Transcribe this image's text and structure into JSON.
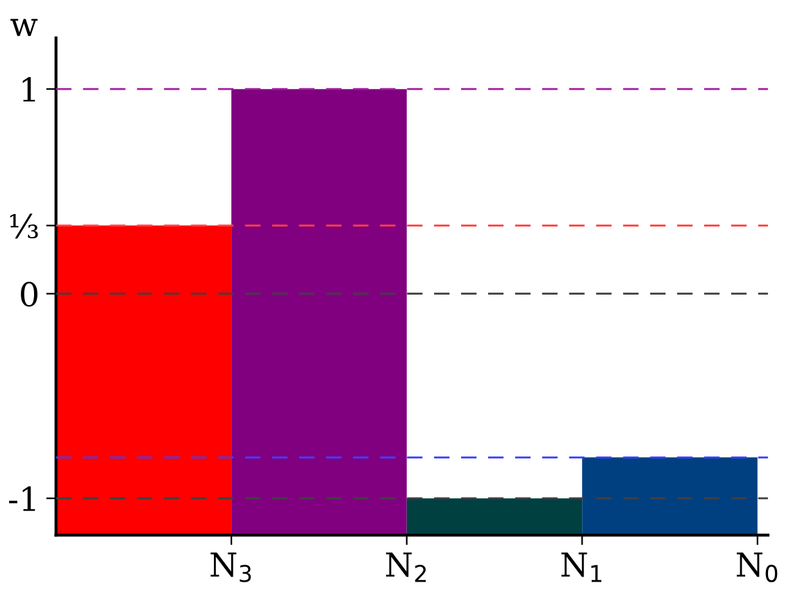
{
  "chart_data": {
    "type": "bar",
    "ylabel": "w",
    "categories": [
      "N$_{3}$",
      "N$_{2}$",
      "N$_{1}$",
      "N$_{0}$"
    ],
    "series": [
      {
        "base": [
          -1.18,
          -1.18,
          -1.18,
          -1.18
        ],
        "values": [
          1.513,
          2.18,
          0.18,
          0.38
        ],
        "colors": [
          "#ff0000",
          "#800080",
          "#004040",
          "#004080"
        ]
      }
    ],
    "ylim": [
      -1.18,
      1.25
    ],
    "yticks": [
      1,
      {
        "value": 0.333,
        "label": "⅓"
      },
      0,
      -1
    ],
    "ref_lines": [
      {
        "axis": "y",
        "value": 1,
        "color": "#a020a0",
        "line_style": "dashed"
      },
      {
        "axis": "y",
        "value": 0.333,
        "color": "#ff4040",
        "line_style": "dashed"
      },
      {
        "axis": "y",
        "value": 0,
        "color": "#404040",
        "line_style": "dashed"
      },
      {
        "axis": "y",
        "value": -0.8,
        "color": "#4040ff",
        "line_style": "dashed"
      },
      {
        "axis": "y",
        "value": -1,
        "color": "#404040",
        "line_style": "dashed"
      }
    ],
    "grid": false,
    "legend": false
  }
}
